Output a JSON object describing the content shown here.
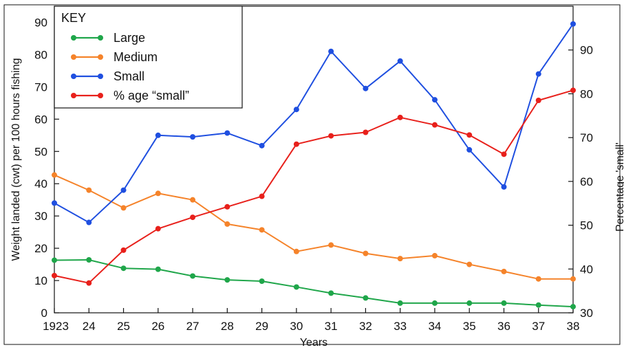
{
  "chart_data": {
    "type": "line",
    "categories": [
      "1923",
      "24",
      "25",
      "26",
      "27",
      "28",
      "29",
      "30",
      "31",
      "32",
      "33",
      "34",
      "35",
      "36",
      "37",
      "38"
    ],
    "xlabel": "Years",
    "ylabel": "Weight landed (cwt) per 100 hours fishing",
    "y2label": "Percentage 'small'",
    "ylim": [
      0,
      95
    ],
    "y2lim": [
      30,
      100
    ],
    "yticks": [
      0,
      10,
      20,
      30,
      40,
      50,
      60,
      70,
      80,
      90
    ],
    "y2ticks": [
      30,
      40,
      50,
      60,
      70,
      80,
      90
    ],
    "legend": {
      "title": "KEY",
      "placement": "top-left"
    },
    "grid": false,
    "series": [
      {
        "name": "Large",
        "axis": "left",
        "color": "#1fa64a",
        "values": [
          16.3,
          16.4,
          13.8,
          13.5,
          11.4,
          10.2,
          9.8,
          8.0,
          6.1,
          4.6,
          3.0,
          3.0,
          3.0,
          3.0,
          2.4,
          1.9
        ]
      },
      {
        "name": "Medium",
        "axis": "left",
        "color": "#f5832a",
        "values": [
          42.7,
          38.0,
          32.5,
          37.0,
          35.0,
          27.5,
          25.7,
          19.0,
          21.0,
          18.4,
          16.8,
          17.7,
          15.0,
          12.8,
          10.5,
          10.5
        ]
      },
      {
        "name": "Small",
        "axis": "left",
        "color": "#1f4fe0",
        "values": [
          34.0,
          28.0,
          38.0,
          55.0,
          54.5,
          55.7,
          51.8,
          63.0,
          81.0,
          69.5,
          78.0,
          66.0,
          50.5,
          39.0,
          74.0,
          89.5
        ]
      },
      {
        "name": "% age “small”",
        "axis": "right",
        "color": "#e8201b",
        "values": [
          38.5,
          36.8,
          44.3,
          49.2,
          51.8,
          54.2,
          56.6,
          68.5,
          70.4,
          71.2,
          74.6,
          72.9,
          70.6,
          66.2,
          78.5,
          80.8
        ]
      }
    ]
  }
}
